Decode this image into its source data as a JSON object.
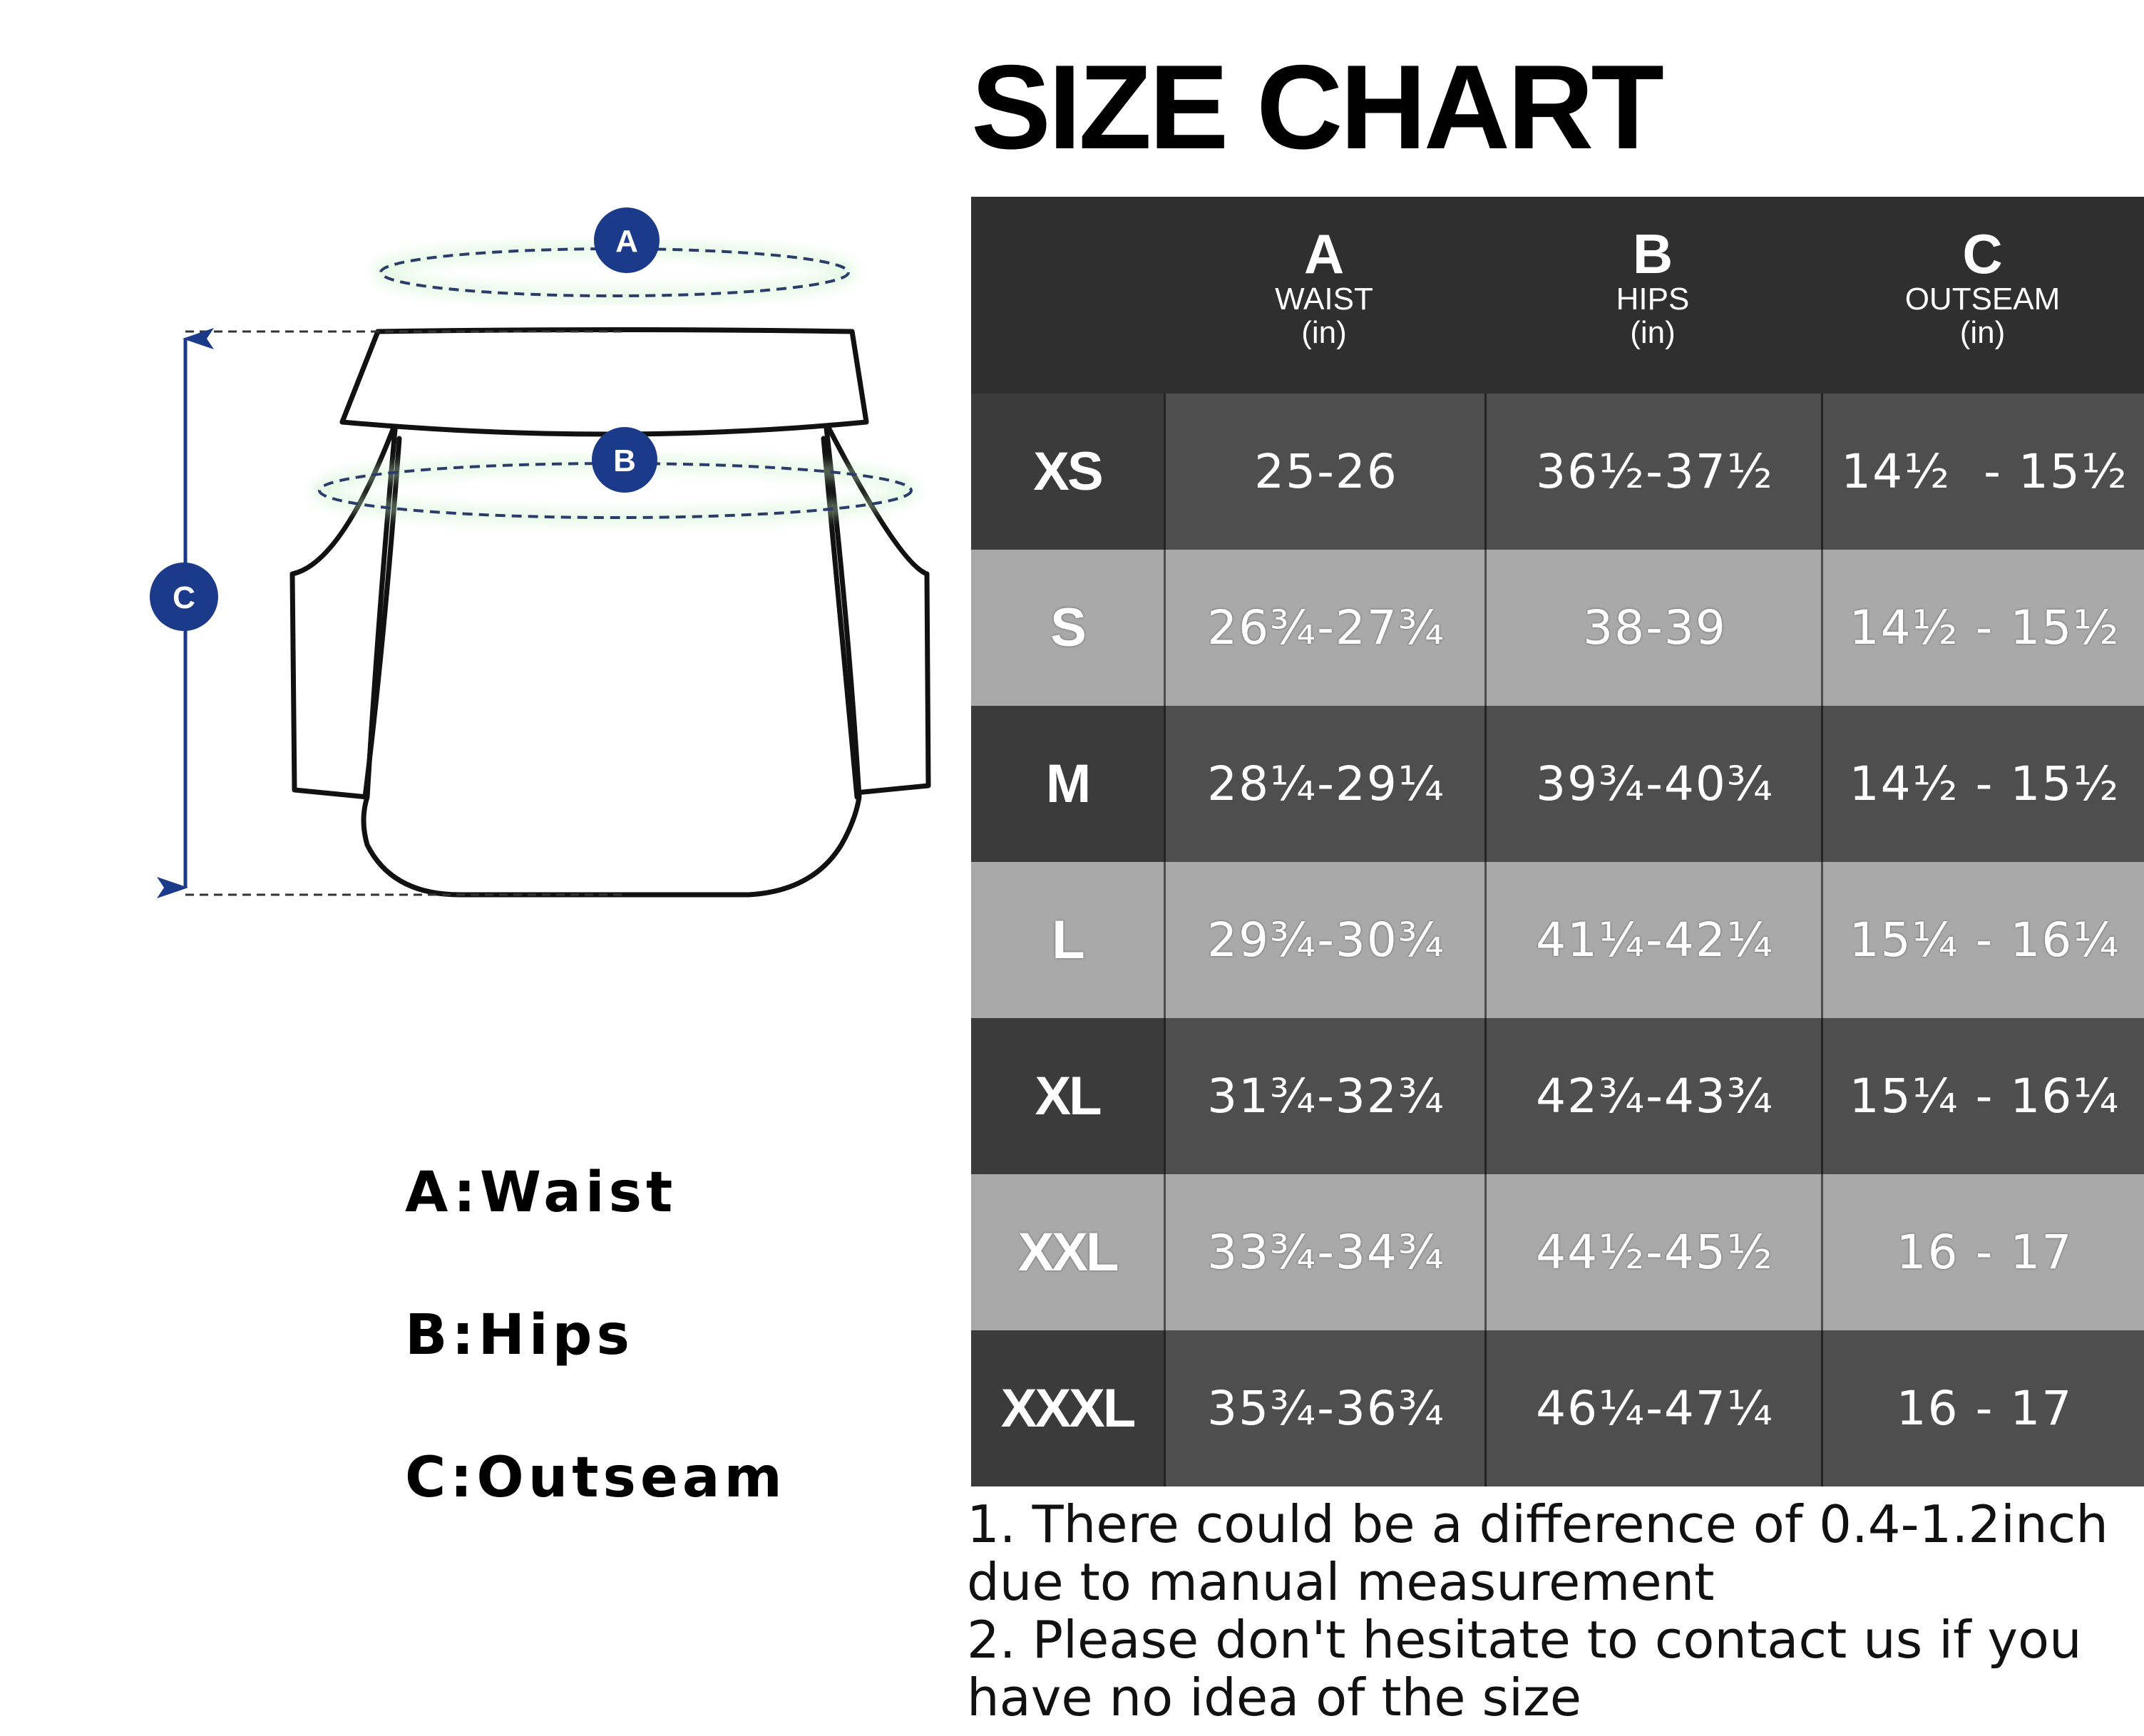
{
  "title": "SIZE CHART",
  "diagram": {
    "markers": [
      "A",
      "B",
      "C"
    ],
    "accent_color": "#1c3a8a",
    "line_color": "#2b3c6b"
  },
  "legend": [
    {
      "text": "A:Waist"
    },
    {
      "text": "B:Hips"
    },
    {
      "text": "C:Outseam"
    }
  ],
  "table": {
    "header_color": "#2f2f2f",
    "dark_row_color": "#4e4e4e",
    "light_row_color": "#a9a9a9",
    "columns": [
      {
        "letter": "A",
        "name": "WAIST",
        "unit": "(in)"
      },
      {
        "letter": "B",
        "name": "HIPS",
        "unit": "(in)"
      },
      {
        "letter": "C",
        "name": "OUTSEAM",
        "unit": "(in)"
      }
    ],
    "rows": [
      {
        "size": "XS",
        "waist": "25-26",
        "hips": "36½-37½",
        "outseam": "14½  - 15½"
      },
      {
        "size": "S",
        "waist": "26¾-27¾",
        "hips": "38-39",
        "outseam": "14½ - 15½"
      },
      {
        "size": "M",
        "waist": "28¼-29¼",
        "hips": "39¾-40¾",
        "outseam": "14½ - 15½"
      },
      {
        "size": "L",
        "waist": "29¾-30¾",
        "hips": "41¼-42¼",
        "outseam": "15¼ - 16¼"
      },
      {
        "size": "XL",
        "waist": "31¾-32¾",
        "hips": "42¾-43¾",
        "outseam": "15¼ - 16¼"
      },
      {
        "size": "XXL",
        "waist": "33¾-34¾",
        "hips": "44½-45½",
        "outseam": "16 - 17"
      },
      {
        "size": "XXXL",
        "waist": "35¾-36¾",
        "hips": "46¼-47¼",
        "outseam": "16 - 17"
      }
    ]
  },
  "notes": [
    "1. There could be a difference of 0.4-1.2inch due to manual measurement",
    "2. Please don't hesitate to contact us if you have no idea of the size"
  ]
}
